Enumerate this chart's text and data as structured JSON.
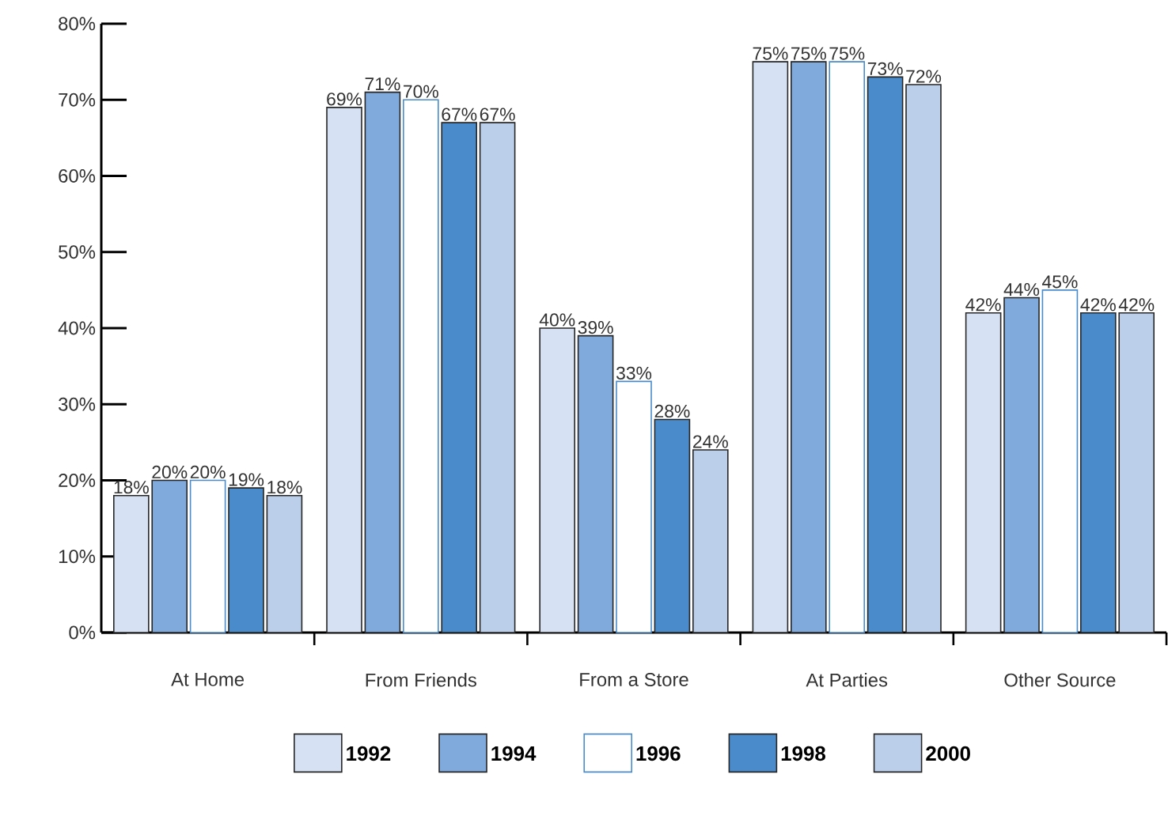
{
  "chart_data": {
    "type": "bar",
    "categories": [
      "At Home",
      "From Friends",
      "From a Store",
      "At Parties",
      "Other Source"
    ],
    "series": [
      {
        "name": "1992",
        "color": "#d6e2f3",
        "values": [
          18,
          69,
          40,
          75,
          42
        ],
        "value_labels": [
          "18%",
          "69%",
          "40%",
          "75%",
          "42%"
        ]
      },
      {
        "name": "1994",
        "color": "#80aadb",
        "values": [
          20,
          71,
          39,
          75,
          44
        ],
        "value_labels": [
          "20%",
          "71%",
          "39%",
          "75%",
          "44%"
        ]
      },
      {
        "name": "1996",
        "color": "#ffffff",
        "values": [
          20,
          70,
          33,
          75,
          45
        ],
        "value_labels": [
          "20%",
          "70%",
          "33%",
          "75%",
          "45%"
        ]
      },
      {
        "name": "1998",
        "color": "#4a8ccb",
        "values": [
          19,
          67,
          28,
          73,
          42
        ],
        "value_labels": [
          "19%",
          "67%",
          "28%",
          "73%",
          "42%"
        ]
      },
      {
        "name": "2000",
        "color": "#bccfea",
        "values": [
          18,
          67,
          24,
          72,
          42
        ],
        "value_labels": [
          "18%",
          "67%",
          "24%",
          "72%",
          "42%"
        ]
      }
    ],
    "ylim": [
      0,
      80
    ],
    "yticks": [
      {
        "value": 0,
        "label": "0%"
      },
      {
        "value": 10,
        "label": "10%"
      },
      {
        "value": 20,
        "label": "20%"
      },
      {
        "value": 30,
        "label": "30%"
      },
      {
        "value": 40,
        "label": "40%"
      },
      {
        "value": 50,
        "label": "50%"
      },
      {
        "value": 60,
        "label": "60%"
      },
      {
        "value": 70,
        "label": "70%"
      },
      {
        "value": 80,
        "label": "80%"
      }
    ],
    "grid": false,
    "legend": "bottom"
  }
}
